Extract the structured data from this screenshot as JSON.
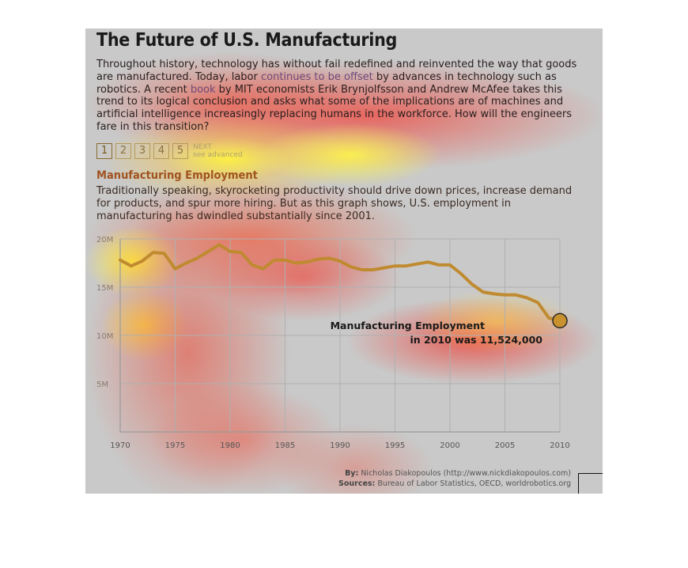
{
  "header": {
    "title": "The Future of U.S. Manufacturing",
    "intro_a": "Throughout history, technology has without fail redefined and reinvented the way that goods are manufactured. Today, labor ",
    "intro_link1": "continues to be offset",
    "intro_b": " by advances in technology such as robotics. A recent ",
    "intro_link2": "book",
    "intro_c": " by MIT economists Erik Brynjolfsson and Andrew McAfee takes this trend to its logical conclusion and asks what some of the implications are of machines and artificial intelligence increasingly replacing humans in the workforce. How will the engineers fare in this transition?"
  },
  "pager": {
    "pages": [
      "1",
      "2",
      "3",
      "4",
      "5"
    ],
    "active": "1",
    "next_label": "NEXT\nsee advanced"
  },
  "section": {
    "title": "Manufacturing Employment",
    "body": "Traditionally speaking, skyrocketing productivity should drive down prices, increase demand for products, and spur more hiring. But as this graph shows, U.S. employment in manufacturing has dwindled substantially since 2001."
  },
  "chart_data": {
    "type": "line",
    "title": "",
    "xlabel": "",
    "ylabel": "",
    "xlim": [
      1970,
      2010
    ],
    "ylim": [
      0,
      20000000
    ],
    "x_ticks": [
      1970,
      1975,
      1980,
      1985,
      1990,
      1995,
      2000,
      2005,
      2010
    ],
    "y_ticks": [
      {
        "value": 5000000,
        "label": "5M"
      },
      {
        "value": 10000000,
        "label": "10M"
      },
      {
        "value": 15000000,
        "label": "15M"
      },
      {
        "value": 20000000,
        "label": "20M"
      }
    ],
    "grid": true,
    "series": [
      {
        "x": [
          1970,
          1971,
          1972,
          1973,
          1974,
          1975,
          1976,
          1977,
          1978,
          1979,
          1980,
          1981,
          1982,
          1983,
          1984,
          1985,
          1986,
          1987,
          1988,
          1989,
          1990,
          1991,
          1992,
          1993,
          1994,
          1995,
          1996,
          1997,
          1998,
          1999,
          2000,
          2001,
          2002,
          2003,
          2004,
          2005,
          2006,
          2007,
          2008,
          2009,
          2010
        ],
        "values": [
          17800000,
          17200000,
          17700000,
          18600000,
          18500000,
          16900000,
          17500000,
          18000000,
          18700000,
          19400000,
          18700000,
          18600000,
          17300000,
          16900000,
          17800000,
          17800000,
          17500000,
          17600000,
          17900000,
          18000000,
          17700000,
          17100000,
          16800000,
          16800000,
          17000000,
          17200000,
          17200000,
          17400000,
          17600000,
          17300000,
          17300000,
          16400000,
          15300000,
          14500000,
          14300000,
          14200000,
          14200000,
          13900000,
          13400000,
          11800000,
          11524000
        ],
        "color": "#c08a30"
      }
    ],
    "annotation": {
      "line1": "Manufacturing Employment",
      "line2": "in 2010 was 11,524,000",
      "x": 2010,
      "y": 11524000
    }
  },
  "credits": {
    "by_label": "By:",
    "by_value": "Nicholas Diakopoulos (http://www.nickdiakopoulos.com)",
    "sources_label": "Sources:",
    "sources_value": "Bureau of Labor Statistics, OECD, worldrobotics.org"
  }
}
